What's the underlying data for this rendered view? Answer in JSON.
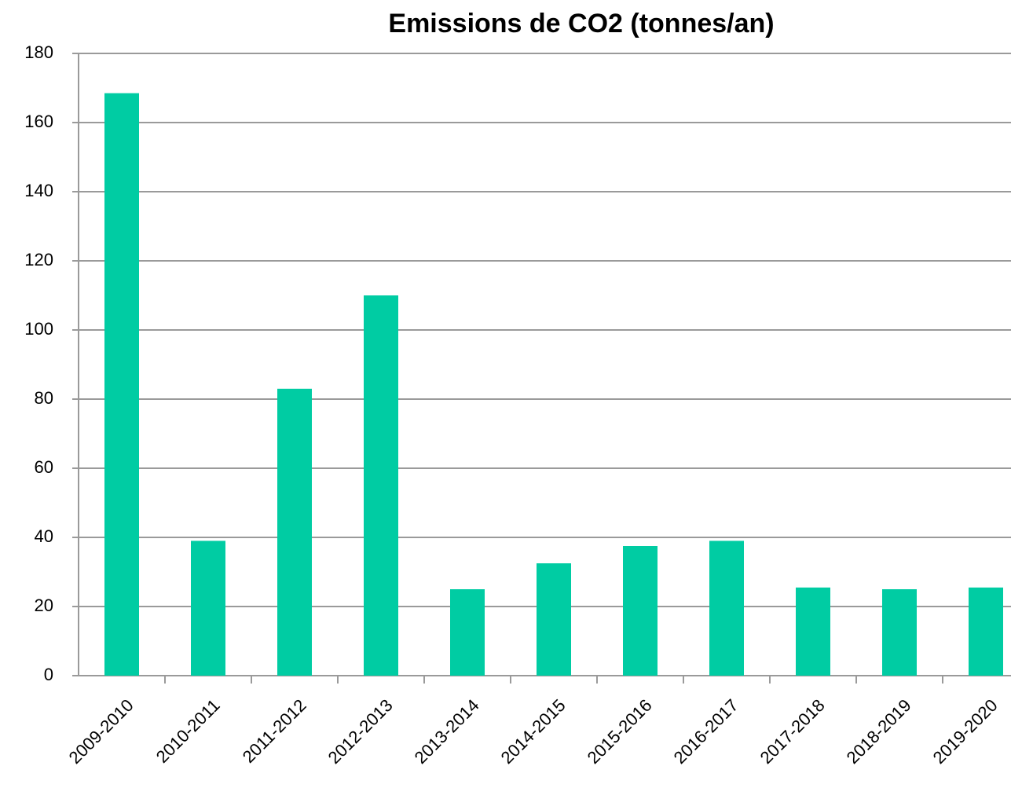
{
  "chart_data": {
    "type": "bar",
    "title": "Emissions de CO2  (tonnes/an)",
    "categories": [
      "2009-2010",
      "2010-2011",
      "2011-2012",
      "2012-2013",
      "2013-2014",
      "2014-2015",
      "2015-2016",
      "2016-2017",
      "2017-2018",
      "2018-2019",
      "2019-2020"
    ],
    "values": [
      168.5,
      39,
      83,
      110,
      25,
      32.5,
      37.5,
      39,
      25.5,
      25,
      25.5
    ],
    "color": "#00cca3",
    "ylim": [
      0,
      180
    ],
    "yticks": [
      0,
      20,
      40,
      60,
      80,
      100,
      120,
      140,
      160,
      180
    ],
    "grid": true
  }
}
